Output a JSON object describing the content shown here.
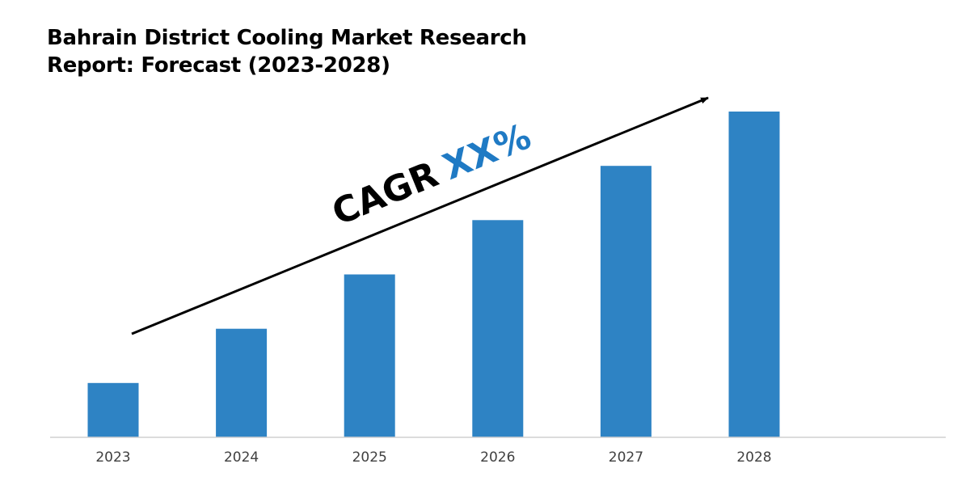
{
  "colors": {
    "bar": "#2e83c4",
    "axis": "#d0d0d0",
    "arrow": "#000000",
    "cagr_text": "#000000",
    "cagr_value": "#1f7ac4"
  },
  "chart_data": {
    "type": "bar",
    "title_lines": [
      "Bahrain District Cooling Market Research",
      "Report: Forecast (2023-2028)"
    ],
    "categories": [
      "2023",
      "2024",
      "2025",
      "2026",
      "2027",
      "2028"
    ],
    "values": [
      1,
      2,
      3,
      4,
      5,
      6
    ],
    "ylim": [
      0,
      6
    ],
    "grid": false,
    "legend": "none",
    "annotation": {
      "type": "trend-arrow",
      "label": "CAGR",
      "value": "XX%"
    }
  }
}
